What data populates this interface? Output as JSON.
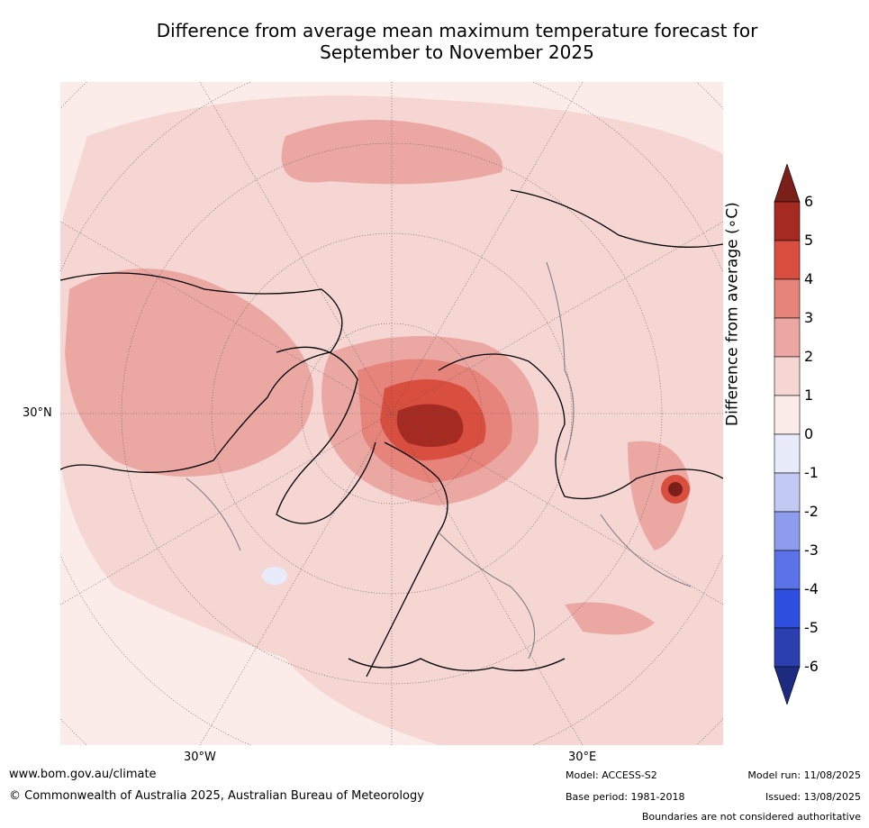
{
  "title_line1": "Difference from average mean maximum temperature forecast for",
  "title_line2": "September to November 2025",
  "axis_labels": {
    "lat_30n": "30°N",
    "lon_30w": "30°W",
    "lon_30e": "30°E"
  },
  "colorbar": {
    "label": "Difference from average (∘C)",
    "ticks": [
      "6",
      "5",
      "4",
      "3",
      "2",
      "1",
      "0",
      "-1",
      "-2",
      "-3",
      "-4",
      "-5",
      "-6"
    ],
    "colors": [
      "#7a1f1a",
      "#a52a22",
      "#d94f3f",
      "#e6837a",
      "#eba8a3",
      "#f5d6d3",
      "#fbecea",
      "#e8ecfa",
      "#c2c9f2",
      "#8d9ced",
      "#5b72e8",
      "#2f4fe0",
      "#2b3fb0",
      "#1c2a80"
    ]
  },
  "footer": {
    "url": "www.bom.gov.au/climate",
    "copyright": "© Commonwealth of Australia 2025, Australian Bureau of Meteorology",
    "model": "Model: ACCESS-S2",
    "base_period": "Base period: 1981-2018",
    "model_run": "Model run: 11/08/2025",
    "issued": "Issued: 13/08/2025",
    "disclaimer": "Boundaries are not considered authoritative"
  }
}
